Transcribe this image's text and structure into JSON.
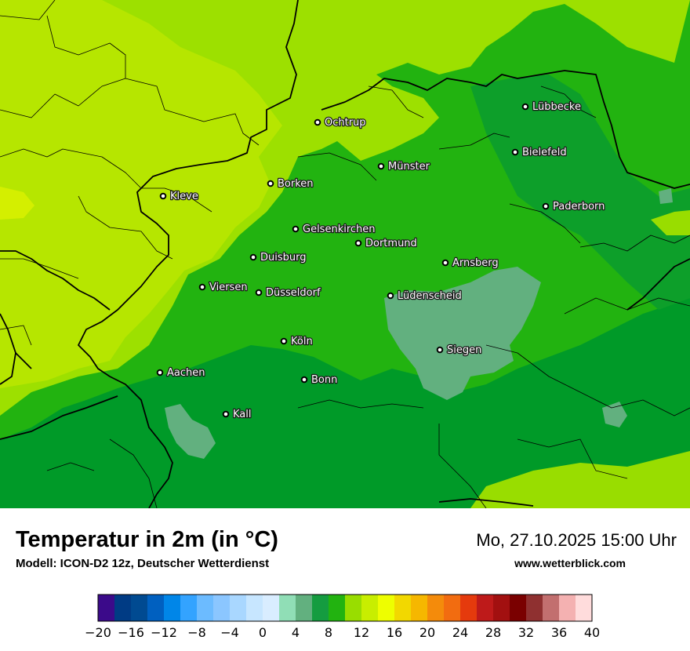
{
  "map": {
    "colors": {
      "ocean_of_11": "#9de000",
      "c9": "#b7e800",
      "c10": "#9ddf00",
      "c7": "#20b210",
      "c8": "#54bd0d",
      "c6": "#009a28",
      "c4": "#5fb08a",
      "hot_spot": "#d4ef00"
    },
    "cities": [
      {
        "name": "Lübbecke"
      },
      {
        "name": "Ochtrup"
      },
      {
        "name": "Bielefeld"
      },
      {
        "name": "Münster"
      },
      {
        "name": "Borken"
      },
      {
        "name": "Kleve"
      },
      {
        "name": "Paderborn"
      },
      {
        "name": "Gelsenkirchen"
      },
      {
        "name": "Dortmund"
      },
      {
        "name": "Duisburg"
      },
      {
        "name": "Arnsberg"
      },
      {
        "name": "Viersen"
      },
      {
        "name": "Düsseldorf"
      },
      {
        "name": "Lüdenscheid"
      },
      {
        "name": "Köln"
      },
      {
        "name": "Siegen"
      },
      {
        "name": "Aachen"
      },
      {
        "name": "Bonn"
      },
      {
        "name": "Kall"
      }
    ]
  },
  "info": {
    "title": "Temperatur in 2m (in °C)",
    "model": "Modell: ICON-D2 12z, Deutscher Wetterdienst",
    "datetime": "Mo, 27.10.2025 15:00 Uhr",
    "website": "www.wetterblick.com"
  },
  "legend": {
    "min": -20,
    "max": 40,
    "step": 2,
    "colors": [
      "#3b0a8a",
      "#003b84",
      "#004a91",
      "#0060c0",
      "#0086e8",
      "#33a3ff",
      "#6cbbff",
      "#8bc6ff",
      "#a9d7ff",
      "#c7e6ff",
      "#d9edff",
      "#90deb6",
      "#62b07f",
      "#159c40",
      "#22b310",
      "#99dd00",
      "#c8ee00",
      "#eefe00",
      "#f2d800",
      "#f6b700",
      "#f48b0b",
      "#f26c10",
      "#e53a0d",
      "#be1a1a",
      "#a21010",
      "#7a0000",
      "#8f3030",
      "#c26f6f",
      "#f4b1b1",
      "#ffdcdc"
    ],
    "tick_labels": [
      "−20",
      "−16",
      "−12",
      "−8",
      "−4",
      "0",
      "4",
      "8",
      "12",
      "16",
      "20",
      "24",
      "28",
      "32",
      "36",
      "40"
    ]
  }
}
